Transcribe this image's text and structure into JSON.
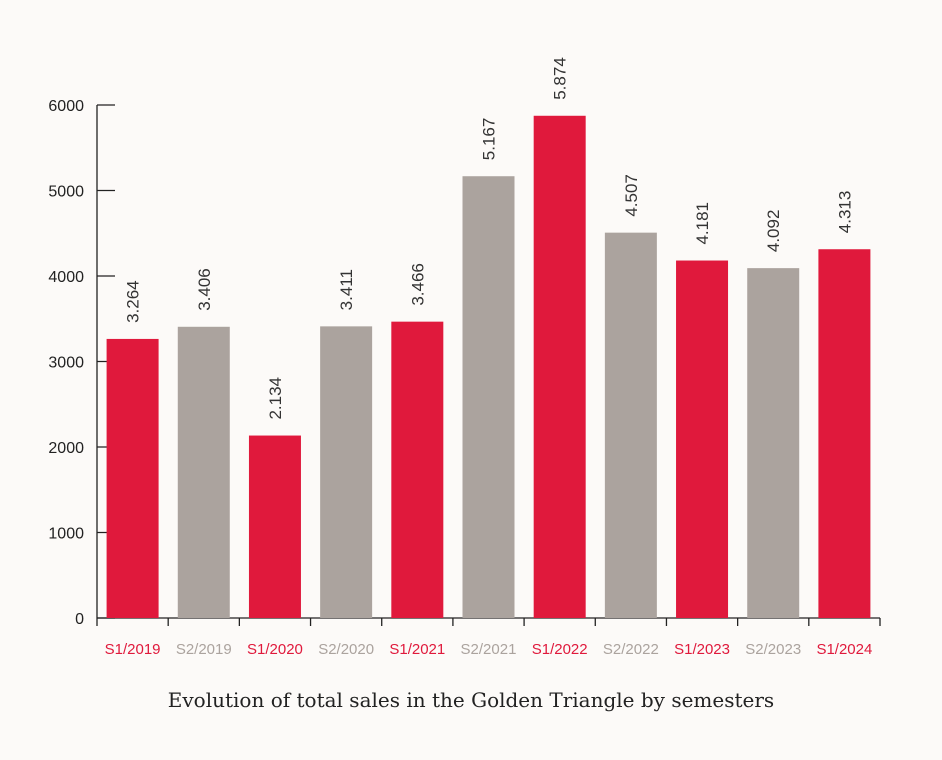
{
  "chart_data": {
    "type": "bar",
    "caption": "Evolution of total sales in the Golden Triangle by semesters",
    "categories": [
      "S1/2019",
      "S2/2019",
      "S1/2020",
      "S2/2020",
      "S1/2021",
      "S2/2021",
      "S1/2022",
      "S2/2022",
      "S1/2023",
      "S2/2023",
      "S1/2024"
    ],
    "values": [
      3264,
      3406,
      2134,
      3411,
      3466,
      5167,
      5874,
      4507,
      4181,
      4092,
      4313
    ],
    "value_labels": [
      "3.264",
      "3.406",
      "2.134",
      "3.411",
      "3.466",
      "5.167",
      "5.874",
      "4.507",
      "4.181",
      "4.092",
      "4.313"
    ],
    "ylim": [
      0,
      6000
    ],
    "yticks": [
      0,
      1000,
      2000,
      3000,
      4000,
      5000,
      6000
    ],
    "grid": false,
    "colors": {
      "S1": "#e0193c",
      "S2": "#aba39e"
    }
  }
}
